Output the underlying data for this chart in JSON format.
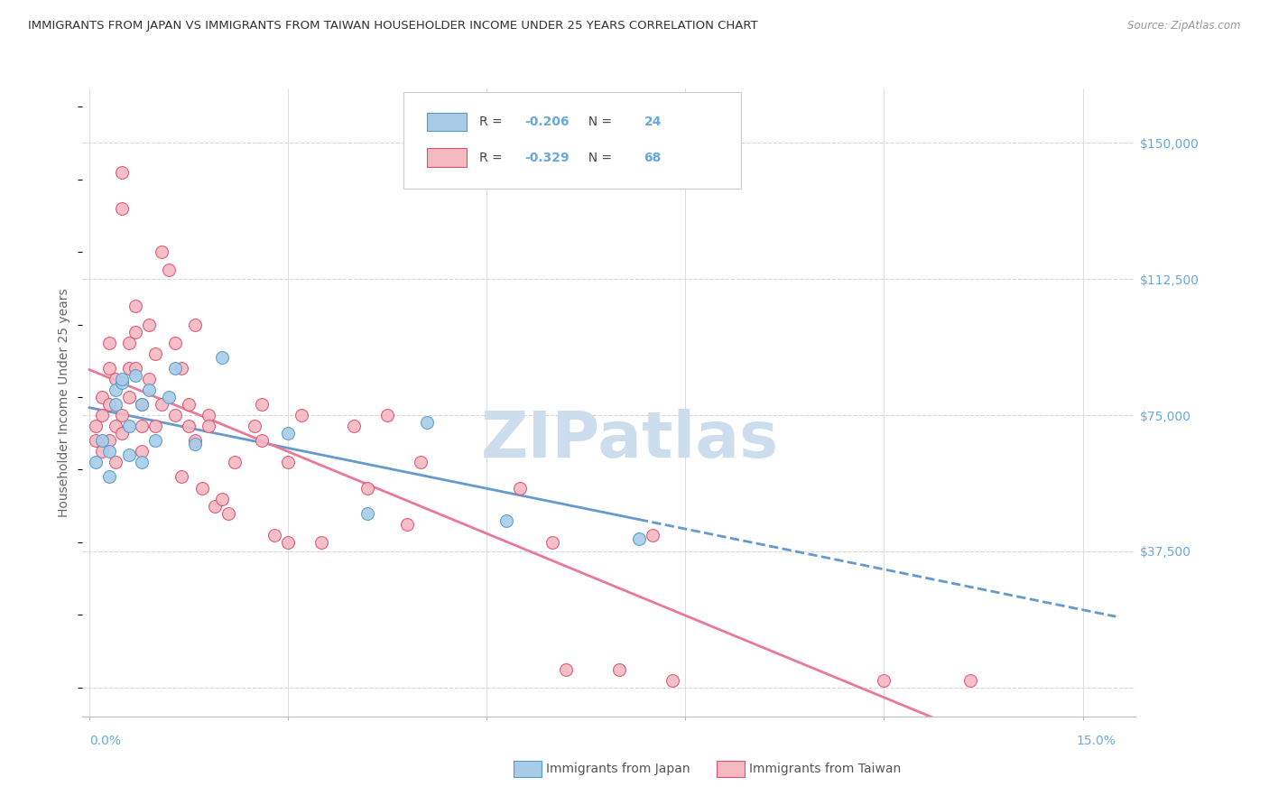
{
  "title": "IMMIGRANTS FROM JAPAN VS IMMIGRANTS FROM TAIWAN HOUSEHOLDER INCOME UNDER 25 YEARS CORRELATION CHART",
  "source": "Source: ZipAtlas.com",
  "ylabel": "Householder Income Under 25 years",
  "yticks": [
    0,
    37500,
    75000,
    112500,
    150000
  ],
  "ytick_labels": [
    "",
    "$37,500",
    "$75,000",
    "$112,500",
    "$150,000"
  ],
  "xticks": [
    0.0,
    0.03,
    0.06,
    0.09,
    0.12,
    0.15
  ],
  "xlim": [
    -0.001,
    0.158
  ],
  "ylim": [
    -8000,
    165000
  ],
  "japan_R": -0.206,
  "japan_N": 24,
  "taiwan_R": -0.329,
  "taiwan_N": 68,
  "japan_color": "#a8cce8",
  "taiwan_color": "#f4b8c1",
  "japan_edge": "#5599cc",
  "taiwan_edge": "#e05070",
  "trend_japan_color": "#6699cc",
  "trend_taiwan_color": "#e87a96",
  "background_color": "#ffffff",
  "grid_color": "#d8d8d8",
  "title_color": "#333333",
  "axis_label_color": "#666666",
  "tick_label_color": "#66aadd",
  "watermark_color": "#ccdded",
  "japan_scatter_x": [
    0.001,
    0.002,
    0.003,
    0.003,
    0.004,
    0.004,
    0.005,
    0.005,
    0.006,
    0.006,
    0.007,
    0.008,
    0.008,
    0.009,
    0.01,
    0.012,
    0.013,
    0.016,
    0.02,
    0.03,
    0.042,
    0.051,
    0.063,
    0.083
  ],
  "japan_scatter_y": [
    62000,
    68000,
    65000,
    58000,
    82000,
    78000,
    84000,
    85000,
    72000,
    64000,
    86000,
    78000,
    62000,
    82000,
    68000,
    80000,
    88000,
    67000,
    91000,
    70000,
    48000,
    73000,
    46000,
    41000
  ],
  "taiwan_scatter_x": [
    0.001,
    0.001,
    0.002,
    0.002,
    0.002,
    0.003,
    0.003,
    0.003,
    0.003,
    0.004,
    0.004,
    0.004,
    0.005,
    0.005,
    0.005,
    0.005,
    0.006,
    0.006,
    0.006,
    0.007,
    0.007,
    0.007,
    0.008,
    0.008,
    0.008,
    0.009,
    0.009,
    0.01,
    0.01,
    0.011,
    0.011,
    0.012,
    0.013,
    0.013,
    0.014,
    0.014,
    0.015,
    0.015,
    0.016,
    0.016,
    0.017,
    0.018,
    0.018,
    0.019,
    0.02,
    0.021,
    0.022,
    0.025,
    0.026,
    0.026,
    0.028,
    0.03,
    0.03,
    0.032,
    0.035,
    0.04,
    0.042,
    0.045,
    0.048,
    0.05,
    0.065,
    0.07,
    0.072,
    0.08,
    0.085,
    0.088,
    0.12,
    0.133
  ],
  "taiwan_scatter_y": [
    68000,
    72000,
    65000,
    75000,
    80000,
    95000,
    88000,
    78000,
    68000,
    62000,
    72000,
    85000,
    142000,
    132000,
    75000,
    70000,
    95000,
    88000,
    80000,
    105000,
    98000,
    88000,
    78000,
    72000,
    65000,
    100000,
    85000,
    92000,
    72000,
    78000,
    120000,
    115000,
    95000,
    75000,
    88000,
    58000,
    78000,
    72000,
    100000,
    68000,
    55000,
    75000,
    72000,
    50000,
    52000,
    48000,
    62000,
    72000,
    78000,
    68000,
    42000,
    40000,
    62000,
    75000,
    40000,
    72000,
    55000,
    75000,
    45000,
    62000,
    55000,
    40000,
    5000,
    5000,
    42000,
    2000,
    2000,
    2000
  ],
  "legend_japan_label": "Immigrants from Japan",
  "legend_taiwan_label": "Immigrants from Taiwan"
}
